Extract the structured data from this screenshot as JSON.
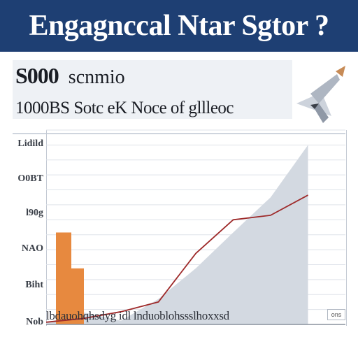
{
  "banner": {
    "title": "Engagnccal Ntar Sgtor ?"
  },
  "header": {
    "headline_number": "S000",
    "headline_word": "scnmio",
    "subheadline": "1000BS  Sotc eK Noce of gllleoc"
  },
  "chart_data": {
    "type": "line",
    "ylabels": [
      "Lidild",
      "O0BT",
      "l90g",
      "NAO",
      "Biht",
      "Nob"
    ],
    "xlabel": "lbdauohqhsdyg idl lnduoblohssslhoxxsd",
    "series": [
      {
        "type": "line",
        "x": [
          0,
          1,
          2,
          3,
          4,
          5,
          6,
          7
        ],
        "values": [
          0.3,
          0.8,
          1.7,
          3.0,
          9.5,
          14.0,
          14.6,
          17.3
        ]
      },
      {
        "type": "area",
        "x": [
          0,
          1,
          2,
          3,
          4,
          5,
          6,
          7
        ],
        "values": [
          0.2,
          1.6,
          0.5,
          3.4,
          7.5,
          12.3,
          17.0,
          24.0
        ]
      },
      {
        "type": "bar",
        "categories": [
          "1",
          "2"
        ],
        "values": [
          12.3,
          7.5
        ]
      }
    ],
    "ylim": [
      0,
      26
    ],
    "grid": true,
    "colors": {
      "line": "#9e2a2a",
      "area": "#d3d9e1",
      "bar": "#e7893f"
    }
  },
  "colors": {
    "banner": "#1e3f73",
    "accent": "#e7893f",
    "text": "#1a1d24"
  },
  "icons": {
    "decoration": "rocket-icon",
    "badge": "chart-badge"
  },
  "badge": {
    "text": "ons"
  }
}
